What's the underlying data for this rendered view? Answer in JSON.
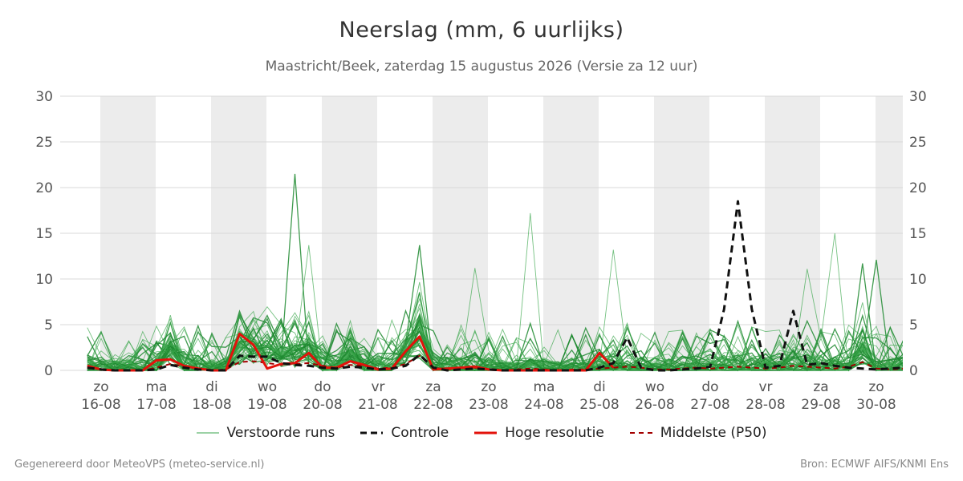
{
  "header": {
    "title": "Neerslag (mm, 6 uurlijks)",
    "subtitle": "Maastricht/Beek, zaterdag 15 augustus 2026 (Versie za 12 uur)"
  },
  "footer": {
    "left": "Gegenereerd door MeteoVPS (meteo-service.nl)",
    "right": "Bron: ECMWF AIFS/KNMI Ens"
  },
  "legend": [
    {
      "label": "Verstoorde runs",
      "color": "#3aa64c",
      "style": "thin"
    },
    {
      "label": "Controle",
      "color": "#111111",
      "style": "dashed-bold"
    },
    {
      "label": "Hoge resolutie",
      "color": "#e3120b",
      "style": "solid-bold"
    },
    {
      "label": "Middelste (P50)",
      "color": "#a30000",
      "style": "dashed"
    }
  ],
  "chart_data": {
    "type": "line",
    "ylim": [
      0,
      30
    ],
    "yticks": [
      0,
      5,
      10,
      15,
      20,
      25,
      30
    ],
    "x_unit": "days since 16-08 00:00",
    "xlim": [
      -0.25,
      14.5
    ],
    "day_labels": [
      {
        "day": "zo",
        "date": "16-08"
      },
      {
        "day": "ma",
        "date": "17-08"
      },
      {
        "day": "di",
        "date": "18-08"
      },
      {
        "day": "wo",
        "date": "19-08"
      },
      {
        "day": "do",
        "date": "20-08"
      },
      {
        "day": "vr",
        "date": "21-08"
      },
      {
        "day": "za",
        "date": "22-08"
      },
      {
        "day": "zo",
        "date": "23-08"
      },
      {
        "day": "ma",
        "date": "24-08"
      },
      {
        "day": "di",
        "date": "25-08"
      },
      {
        "day": "wo",
        "date": "26-08"
      },
      {
        "day": "do",
        "date": "27-08"
      },
      {
        "day": "vr",
        "date": "28-08"
      },
      {
        "day": "za",
        "date": "29-08"
      },
      {
        "day": "zo",
        "date": "30-08"
      }
    ],
    "shaded_days": [
      0,
      2,
      4,
      6,
      8,
      10,
      12,
      14
    ],
    "step_days": 0.25,
    "start_day": -0.25,
    "grid": true,
    "colors": {
      "ensemble": "#3aa64c",
      "ensemble_dark": "#1f8a30",
      "control": "#111111",
      "hires": "#e3120b",
      "median": "#a30000",
      "shade": "#ececec",
      "grid": "#d9d9d9",
      "axis_text": "#555555"
    },
    "ensemble_count": 50,
    "highlight_peaks": [
      {
        "x": 3.5,
        "y": 21.5
      },
      {
        "x": 7.75,
        "y": 17.2
      },
      {
        "x": 13.25,
        "y": 15.0
      },
      {
        "x": 5.75,
        "y": 13.7
      },
      {
        "x": 3.75,
        "y": 13.7
      },
      {
        "x": 9.25,
        "y": 13.2
      },
      {
        "x": 14.0,
        "y": 12.1
      },
      {
        "x": 12.75,
        "y": 11.1
      },
      {
        "x": 6.75,
        "y": 11.2
      },
      {
        "x": 13.75,
        "y": 11.7
      }
    ],
    "series_control": {
      "name": "Controle",
      "x": [
        -0.25,
        0,
        0.25,
        0.5,
        0.75,
        1,
        1.25,
        1.5,
        1.75,
        2,
        2.25,
        2.5,
        2.75,
        3,
        3.25,
        3.5,
        3.75,
        4,
        4.25,
        4.5,
        4.75,
        5,
        5.25,
        5.5,
        5.75,
        6,
        6.25,
        6.5,
        6.75,
        7,
        7.25,
        7.5,
        7.75,
        8,
        8.25,
        8.5,
        8.75,
        9,
        9.25,
        9.5,
        9.75,
        10,
        10.25,
        10.5,
        10.75,
        11,
        11.25,
        11.5,
        11.75,
        12,
        12.25,
        12.5,
        12.75,
        13,
        13.25,
        13.5,
        13.75,
        14,
        14.25,
        14.5
      ],
      "values": [
        0.3,
        0.1,
        0,
        0,
        0,
        0.1,
        0.6,
        0.3,
        0.1,
        0,
        0,
        1.6,
        1.5,
        1.5,
        0.8,
        0.6,
        0.5,
        0.3,
        0.2,
        0.4,
        0.3,
        0.1,
        0.2,
        0.5,
        1.7,
        0.3,
        0,
        0.1,
        0.2,
        0.1,
        0,
        0,
        0,
        0,
        0,
        0,
        0,
        0.3,
        0.8,
        3.6,
        0.3,
        0,
        0,
        0.1,
        0.2,
        0.4,
        6.7,
        18.5,
        6.7,
        0.3,
        0.5,
        6.5,
        0.6,
        0.8,
        0.5,
        0.3,
        0.2,
        0.1,
        0.2,
        0.3
      ]
    },
    "series_hires": {
      "name": "Hoge resolutie",
      "x": [
        -0.25,
        0,
        0.25,
        0.5,
        0.75,
        1,
        1.25,
        1.5,
        1.75,
        2,
        2.25,
        2.5,
        2.75,
        3,
        3.25,
        3.5,
        3.75,
        4,
        4.25,
        4.5,
        4.75,
        5,
        5.25,
        5.5,
        5.75,
        6,
        6.25,
        6.5,
        6.75,
        7,
        7.25,
        7.5,
        7.75,
        8,
        8.25,
        8.5,
        8.75,
        9,
        9.25
      ],
      "values": [
        0.5,
        0.1,
        0,
        0,
        0,
        1.1,
        1.2,
        0.5,
        0.2,
        0,
        0,
        4.0,
        2.8,
        0.2,
        0.7,
        0.8,
        1.9,
        0.3,
        0.3,
        1.0,
        0.6,
        0.1,
        0.2,
        2.1,
        3.7,
        0.1,
        0.2,
        0.3,
        0.4,
        0.1,
        0,
        0,
        0,
        0,
        0,
        0,
        0,
        1.9,
        0.3
      ]
    },
    "series_median": {
      "name": "Middelste (P50)",
      "x": [
        -0.25,
        0,
        0.25,
        0.5,
        0.75,
        1,
        1.25,
        1.5,
        1.75,
        2,
        2.25,
        2.5,
        2.75,
        3,
        3.25,
        3.5,
        3.75,
        4,
        4.25,
        4.5,
        4.75,
        5,
        5.25,
        5.5,
        5.75,
        6,
        6.25,
        6.5,
        6.75,
        7,
        7.25,
        7.5,
        7.75,
        8,
        8.25,
        8.5,
        8.75,
        9,
        9.25,
        9.5,
        9.75,
        10,
        10.25,
        10.5,
        10.75,
        11,
        11.25,
        11.5,
        11.75,
        12,
        12.25,
        12.5,
        12.75,
        13,
        13.25,
        13.5,
        13.75,
        14,
        14.25,
        14.5
      ],
      "values": [
        0.3,
        0.1,
        0,
        0,
        0,
        0.3,
        0.7,
        0.4,
        0.2,
        0,
        0.1,
        0.9,
        1.0,
        0.8,
        0.6,
        0.7,
        0.8,
        0.5,
        0.3,
        0.6,
        0.5,
        0.2,
        0.3,
        0.7,
        1.6,
        0.3,
        0.1,
        0.2,
        0.3,
        0.1,
        0,
        0.1,
        0.2,
        0.1,
        0,
        0.1,
        0.1,
        0.2,
        0.3,
        0.4,
        0.3,
        0.1,
        0.1,
        0.2,
        0.3,
        0.2,
        0.3,
        0.4,
        0.3,
        0.2,
        0.3,
        0.5,
        0.4,
        0.3,
        0.2,
        0.4,
        0.9,
        0.2,
        0.1,
        0.2
      ]
    }
  }
}
